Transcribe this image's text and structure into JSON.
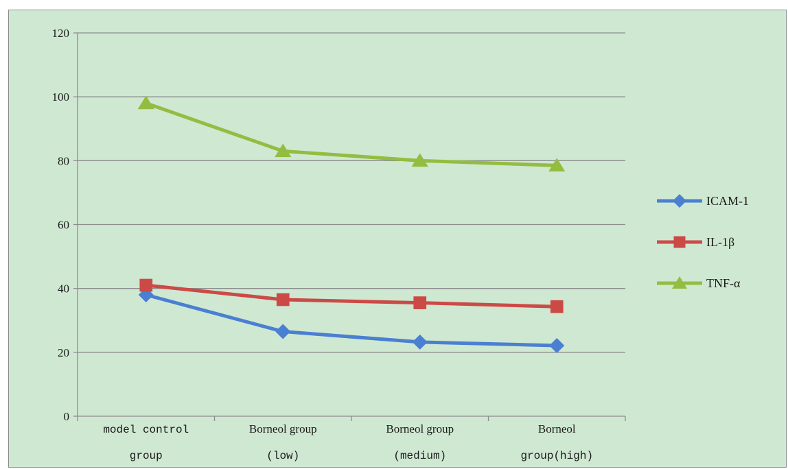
{
  "chart_data": {
    "type": "line",
    "categories": [
      [
        "model control",
        "group"
      ],
      [
        "Borneol group",
        "(low)"
      ],
      [
        "Borneol group",
        "(medium)"
      ],
      [
        "Borneol",
        "group(high)"
      ]
    ],
    "series": [
      {
        "name": "ICAM-1",
        "values": [
          38,
          26.5,
          23.2,
          22.1
        ],
        "color": "#4a7fd1",
        "marker": "diamond"
      },
      {
        "name": "IL-1β",
        "values": [
          41,
          36.5,
          35.5,
          34.3
        ],
        "color": "#cc4a46",
        "marker": "square"
      },
      {
        "name": "TNF-α",
        "values": [
          98,
          83,
          80,
          78.5
        ],
        "color": "#93bd41",
        "marker": "triangle"
      }
    ],
    "ylim": [
      0,
      120
    ],
    "yticks": [
      0,
      20,
      40,
      60,
      80,
      100,
      120
    ],
    "grid": true,
    "legend_position": "right",
    "background_color": "#cfe8d2"
  }
}
